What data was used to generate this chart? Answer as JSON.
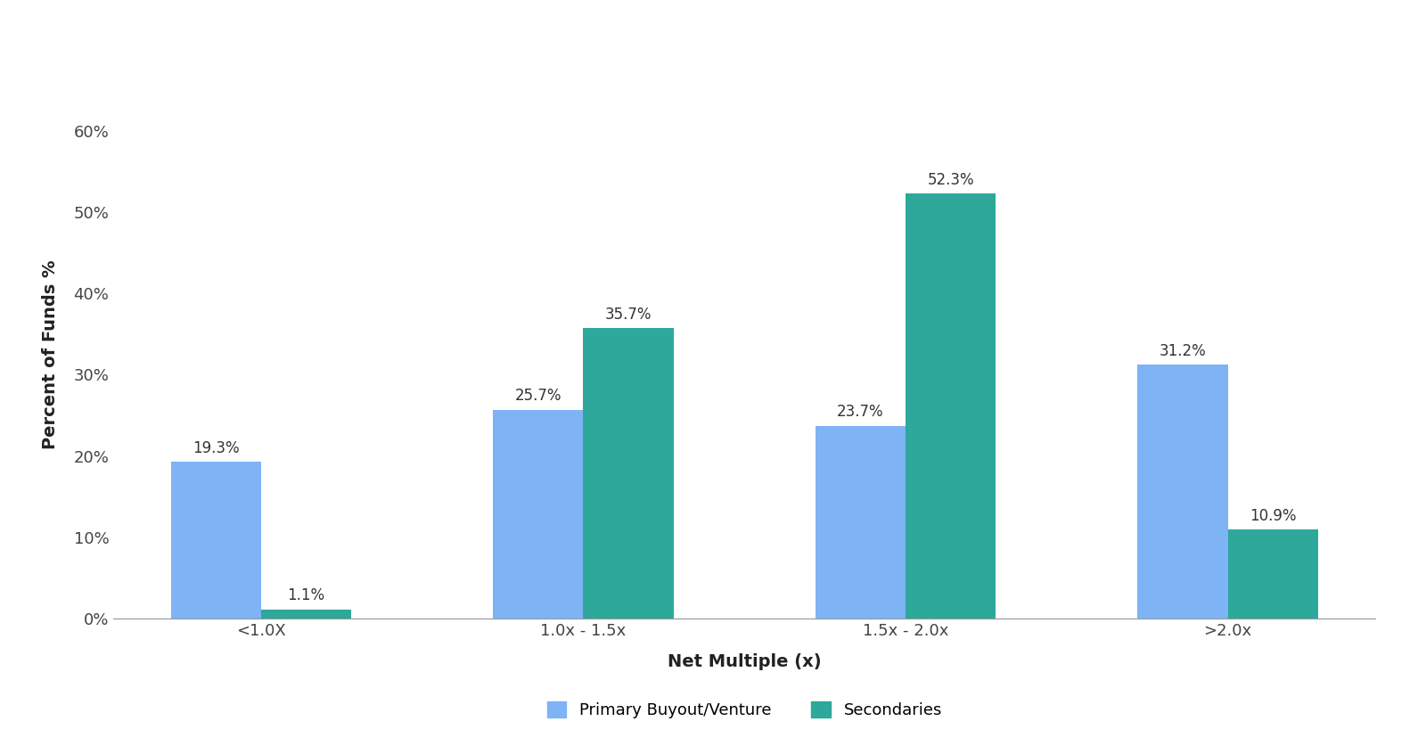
{
  "categories": [
    "<1.0X",
    "1.0x - 1.5x",
    "1.5x - 2.0x",
    ">2.0x"
  ],
  "primary_values": [
    19.3,
    25.7,
    23.7,
    31.2
  ],
  "secondary_values": [
    1.1,
    35.7,
    52.3,
    10.9
  ],
  "primary_color": "#7EB3F5",
  "secondary_color": "#2DA89A",
  "ylabel": "Percent of Funds %",
  "xlabel": "Net Multiple (x)",
  "ylim": [
    0,
    65
  ],
  "yticks": [
    0,
    10,
    20,
    30,
    40,
    50,
    60
  ],
  "ytick_labels": [
    "0%",
    "10%",
    "20%",
    "30%",
    "40%",
    "50%",
    "60%"
  ],
  "legend_labels": [
    "Primary Buyout/Venture",
    "Secondaries"
  ],
  "bar_width": 0.28,
  "background_color": "#ffffff",
  "label_fontsize": 13,
  "axis_label_fontsize": 14,
  "tick_fontsize": 13,
  "annotation_fontsize": 12
}
